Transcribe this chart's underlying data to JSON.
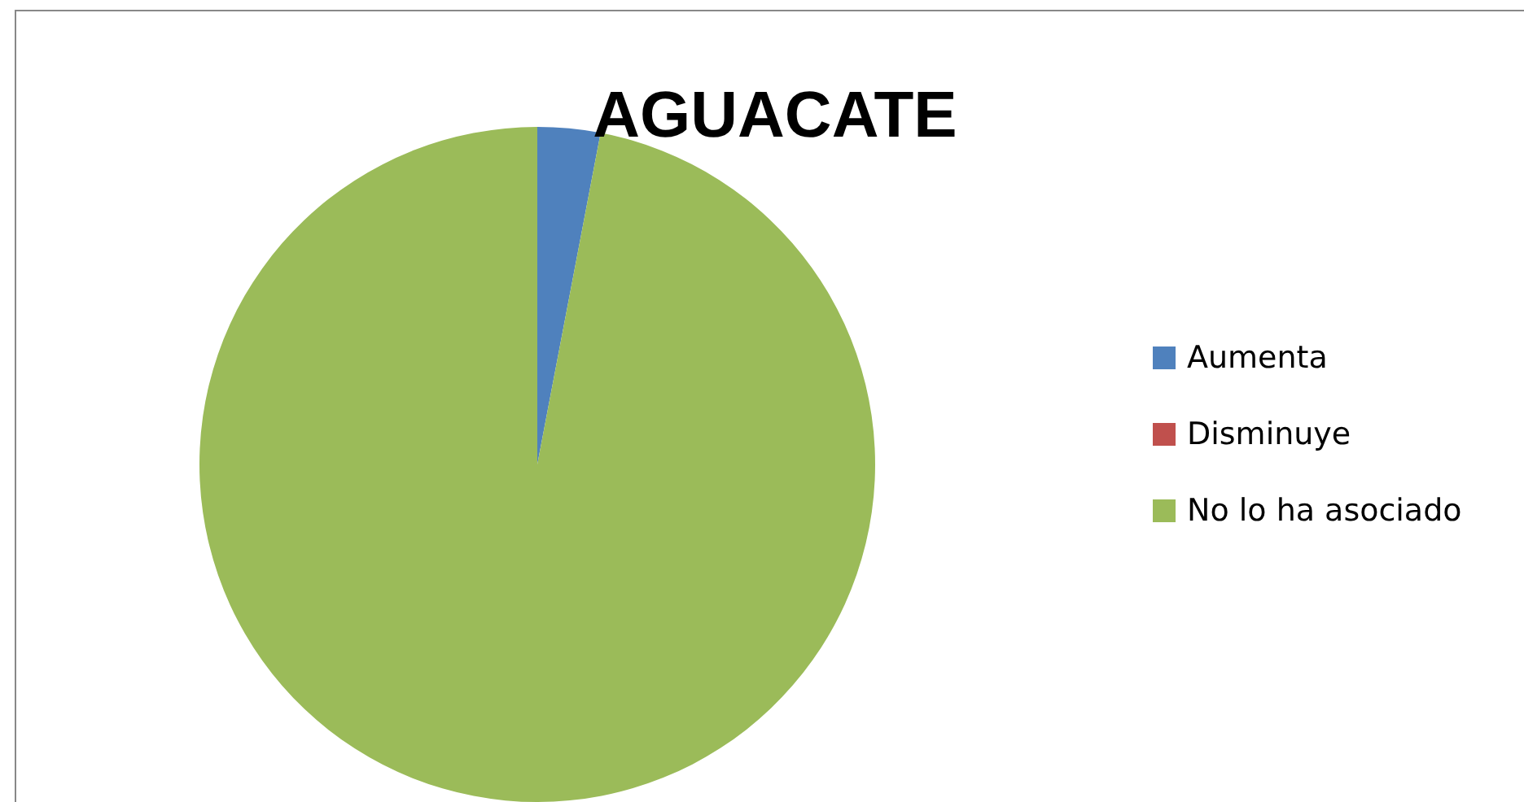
{
  "chart_data": {
    "type": "pie",
    "title": "AGUACATE",
    "categories": [
      "Aumenta",
      "Disminuye",
      "No lo ha asociado"
    ],
    "values": [
      3,
      0,
      97
    ],
    "colors": [
      "#4f81bd",
      "#c0504d",
      "#9bbb59"
    ],
    "legend": "right"
  }
}
